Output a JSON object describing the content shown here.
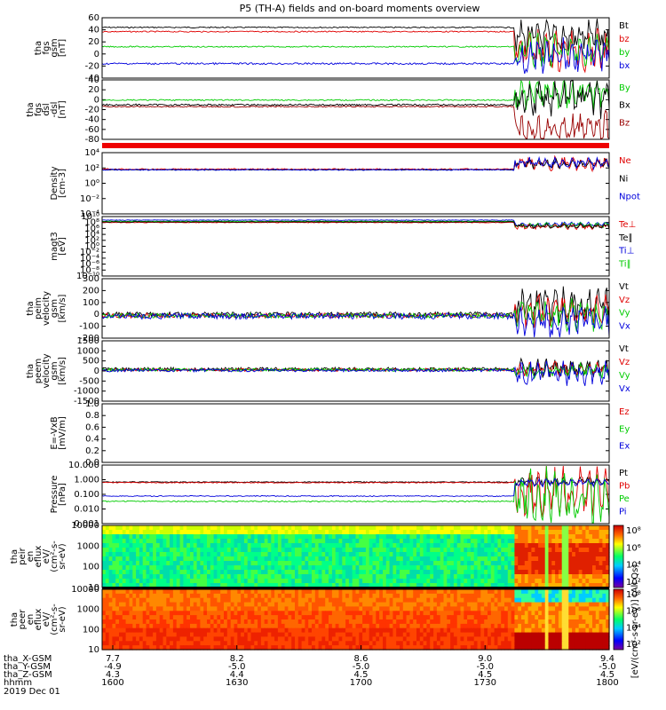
{
  "title": "P5 (TH-A) fields and on-board moments overview",
  "colors": {
    "black": "#000000",
    "red": "#e00000",
    "green": "#00cc00",
    "blue": "#0000dd",
    "darkred": "#990000",
    "bar": "#ee0000"
  },
  "panels": [
    {
      "id": "p1",
      "ylabel": [
        "tha",
        "fgs",
        "gsm",
        "[nT]"
      ],
      "ticks": [
        "60",
        "40",
        "20",
        "0",
        "-20",
        "-40"
      ],
      "yrange": [
        -40,
        60
      ],
      "legend": [
        {
          "t": "Bt",
          "c": "black"
        },
        {
          "t": "bz",
          "c": "red"
        },
        {
          "t": "by",
          "c": "green"
        },
        {
          "t": "bx",
          "c": "blue"
        }
      ]
    },
    {
      "id": "p2",
      "ylabel": [
        "tha",
        "fgs",
        "dsl",
        "-dsl",
        "[nT]"
      ],
      "ticks": [
        "40",
        "20",
        "0",
        "-20",
        "-40",
        "-60",
        "-80"
      ],
      "yrange": [
        -90,
        40
      ],
      "legend": [
        {
          "t": "By",
          "c": "green"
        },
        {
          "t": "Bx",
          "c": "black"
        },
        {
          "t": "Bz",
          "c": "darkred"
        }
      ]
    },
    {
      "id": "p3",
      "ylabel": [
        "Density",
        "[cm-3]"
      ],
      "ticks": [
        "10⁴",
        "10²",
        "10⁰",
        "10⁻²",
        "10⁻⁴"
      ],
      "log": true,
      "legend": [
        {
          "t": "Ne",
          "c": "red"
        },
        {
          "t": "Ni",
          "c": "black"
        },
        {
          "t": "Npot",
          "c": "blue"
        }
      ]
    },
    {
      "id": "p4",
      "ylabel": [
        "magt3",
        "[eV]"
      ],
      "ticks": [
        "10¹⁰",
        "10⁸",
        "10⁶",
        "10⁴",
        "10²",
        "10⁰",
        "10⁻²",
        "10⁻⁴",
        "10⁻⁶",
        "10⁻⁸",
        "10⁻¹⁰"
      ],
      "log": true,
      "legend": [
        {
          "t": "Te⊥",
          "c": "red"
        },
        {
          "t": "Te∥",
          "c": "black"
        },
        {
          "t": "Ti⊥",
          "c": "blue"
        },
        {
          "t": "Ti∥",
          "c": "green"
        }
      ]
    },
    {
      "id": "p5",
      "ylabel": [
        "tha",
        "peim",
        "velocity",
        "gsm",
        "[km/s]"
      ],
      "ticks": [
        "300",
        "200",
        "100",
        "0",
        "-100",
        "-200"
      ],
      "yrange": [
        -200,
        300
      ],
      "legend": [
        {
          "t": "Vt",
          "c": "black"
        },
        {
          "t": "Vz",
          "c": "red"
        },
        {
          "t": "Vy",
          "c": "green"
        },
        {
          "t": "Vx",
          "c": "blue"
        }
      ]
    },
    {
      "id": "p6",
      "ylabel": [
        "tha",
        "peem",
        "velocity",
        "gsm",
        "[km/s]"
      ],
      "ticks": [
        "1500",
        "1000",
        "500",
        "0",
        "-500",
        "-1000",
        "-1500"
      ],
      "yrange": [
        -1500,
        1500
      ],
      "legend": [
        {
          "t": "Vt",
          "c": "black"
        },
        {
          "t": "Vz",
          "c": "red"
        },
        {
          "t": "Vy",
          "c": "green"
        },
        {
          "t": "Vx",
          "c": "blue"
        }
      ]
    },
    {
      "id": "p7",
      "ylabel": [
        "E=-VxB",
        "[mV/m]"
      ],
      "ticks": [
        "1.0",
        "0.8",
        "0.6",
        "0.4",
        "0.2",
        "0.0"
      ],
      "yrange": [
        0,
        1
      ],
      "legend": [
        {
          "t": "Ez",
          "c": "red"
        },
        {
          "t": "Ey",
          "c": "green"
        },
        {
          "t": "Ex",
          "c": "blue"
        }
      ]
    },
    {
      "id": "p8",
      "ylabel": [
        "Pressure",
        "[nPa]"
      ],
      "ticks": [
        "10.000",
        "1.000",
        "0.100",
        "0.010",
        "0.001"
      ],
      "log": true,
      "legend": [
        {
          "t": "Pt",
          "c": "black"
        },
        {
          "t": "Pb",
          "c": "red"
        },
        {
          "t": "Pe",
          "c": "green"
        },
        {
          "t": "Pi",
          "c": "blue"
        }
      ]
    },
    {
      "id": "p9",
      "ylabel": [
        "tha",
        "peir",
        "en",
        "eflux",
        "eV/",
        "(cm²-s-",
        "sr-eV)"
      ],
      "ticks": [
        "10000",
        "1000",
        "100",
        "10"
      ],
      "spectro": true,
      "cbticks": [
        "10⁸",
        "10⁶",
        "10⁴",
        "10²"
      ]
    },
    {
      "id": "p10",
      "ylabel": [
        "tha",
        "peer",
        "en",
        "eflux",
        "eV/",
        "(cm²-s-",
        "sr-eV)"
      ],
      "ticks": [
        "10000",
        "1000",
        "100",
        "10"
      ],
      "spectro": true,
      "cbticks": [
        "10⁸",
        "10⁶",
        "10⁴",
        "10²"
      ]
    }
  ],
  "colorbar_label": "[eV/(cm²-s-sr-eV)] (All Qs)",
  "xaxis": {
    "rows": [
      {
        "label": "tha_X-GSM",
        "values": [
          "7.7",
          "8.2",
          "8.6",
          "9.0",
          "9.4"
        ]
      },
      {
        "label": "tha_Y-GSM",
        "values": [
          "-4.9",
          "-5.0",
          "-5.0",
          "-5.0",
          "-5.0"
        ]
      },
      {
        "label": "tha_Z-GSM",
        "values": [
          "4.3",
          "4.4",
          "4.5",
          "4.5",
          "4.5"
        ]
      },
      {
        "label": "hhmm",
        "values": [
          "1600",
          "1630",
          "1700",
          "1730",
          "1800"
        ]
      }
    ],
    "date": "2019 Dec 01"
  },
  "chart_data": {
    "type": "line",
    "title": "P5 (TH-A) fields and on-board moments overview",
    "x_hhmm": [
      "1600",
      "1630",
      "1700",
      "1730",
      "1800"
    ],
    "event_start_hhmm": "1742",
    "series_approx": [
      {
        "panel": "tha fgs gsm [nT]",
        "name": "Bt",
        "before": 45,
        "after_range": [
          20,
          50
        ]
      },
      {
        "panel": "tha fgs gsm [nT]",
        "name": "bz",
        "before": 38,
        "after_range": [
          -15,
          40
        ]
      },
      {
        "panel": "tha fgs gsm [nT]",
        "name": "by",
        "before": 12,
        "after_range": [
          -10,
          20
        ]
      },
      {
        "panel": "tha fgs gsm [nT]",
        "name": "bx",
        "before": -18,
        "after_range": [
          -15,
          10
        ]
      },
      {
        "panel": "Pressure [nPa]",
        "name": "Pb",
        "before": 0.9,
        "after_range": [
          0.05,
          1.0
        ]
      },
      {
        "panel": "Pressure [nPa]",
        "name": "Pe",
        "before": 0.09,
        "after_range": [
          0.002,
          0.1
        ]
      },
      {
        "panel": "Pressure [nPa]",
        "name": "Pi",
        "before": 0.12,
        "after_range": [
          0.5,
          1.0
        ]
      }
    ]
  }
}
